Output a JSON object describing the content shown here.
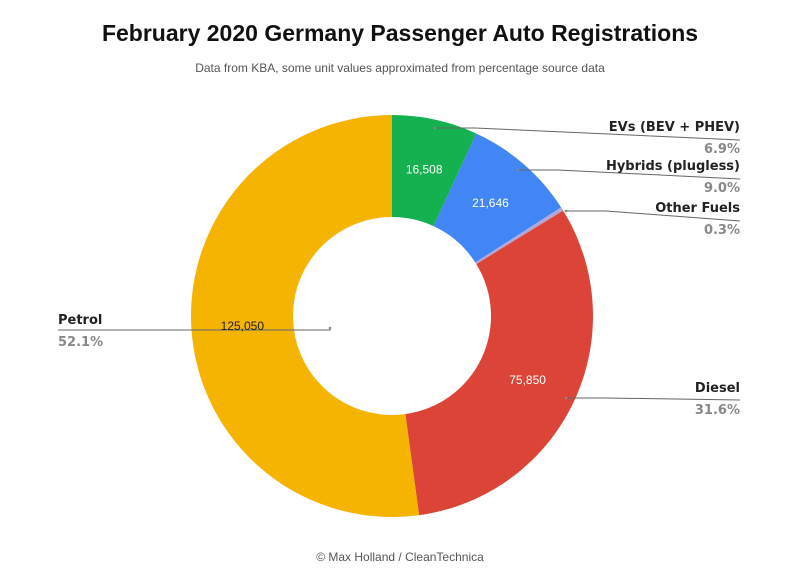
{
  "header": {
    "title": "February 2020 Germany Passenger Auto Registrations",
    "subtitle": "Data from KBA, some unit values approximated from percentage source data"
  },
  "footer": {
    "credit": "© Max Holland / CleanTechnica"
  },
  "chart_data": {
    "type": "pie",
    "style": "donut",
    "title": "February 2020 Germany Passenger Auto Registrations",
    "subtitle": "Data from KBA, some unit values approximated from percentage source data",
    "slices": [
      {
        "label": "EVs (BEV + PHEV)",
        "value": 16508,
        "value_label": "16,508",
        "percent_label": "6.9%",
        "color": "#15b150"
      },
      {
        "label": "Hybrids (plugless)",
        "value": 21646,
        "value_label": "21,646",
        "percent_label": "9.0%",
        "color": "#4285f4"
      },
      {
        "label": "Other Fuels",
        "value": 720,
        "value_label": "",
        "percent_label": "0.3%",
        "color": "#b4a7d6"
      },
      {
        "label": "Diesel",
        "value": 75850,
        "value_label": "75,850",
        "percent_label": "31.6%",
        "color": "#db4437"
      },
      {
        "label": "Petrol",
        "value": 125050,
        "value_label": "125,050",
        "percent_label": "52.1%",
        "color": "#f4b400"
      }
    ]
  }
}
